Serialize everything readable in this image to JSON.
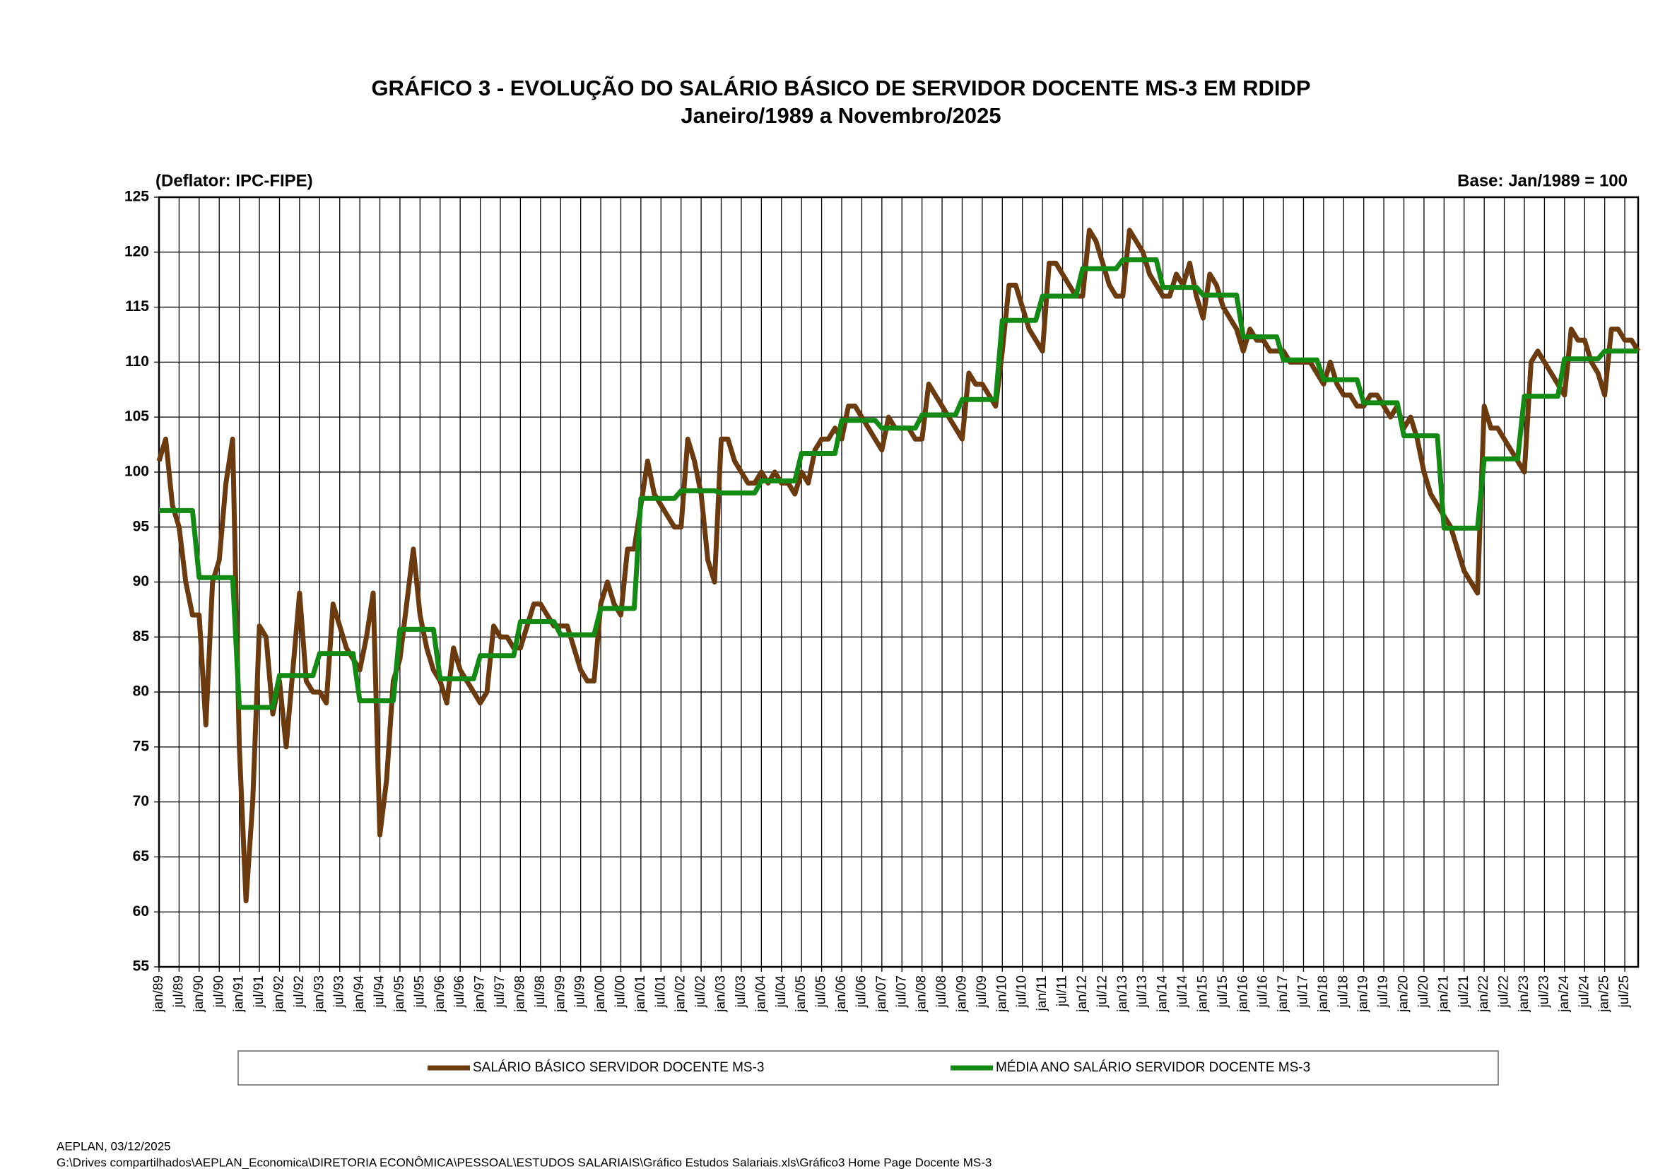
{
  "chart_data": {
    "type": "line",
    "title": "GRÁFICO 3 - EVOLUÇÃO DO SALÁRIO BÁSICO DE SERVIDOR DOCENTE MS-3 EM RDIDP",
    "subtitle": "Janeiro/1989 a Novembro/2025",
    "annotations": [
      "(Deflator: IPC-FIPE)",
      "Base: Jan/1989 = 100"
    ],
    "footer": [
      "AEPLAN, 03/12/2025",
      "G:\\Drives compartilhados\\AEPLAN_Economica\\DIRETORIA ECONÔMICA\\PESSOAL\\ESTUDOS SALARIAIS\\Gráfico Estudos Salariais.xls\\Gráfico3 Home Page Docente MS-3"
    ],
    "categories": [
      "jan/89",
      null,
      null,
      "jul/89",
      null,
      null,
      "jan/90",
      null,
      null,
      "jul/90",
      null,
      null,
      "jan/91",
      null,
      null,
      "jul/91",
      null,
      null,
      "jan/92",
      null,
      null,
      "jul/92",
      null,
      null,
      "jan/93",
      null,
      null,
      "jul/93",
      null,
      null,
      "jan/94",
      null,
      null,
      "jul/94",
      null,
      null,
      "jan/95",
      null,
      null,
      "jul/95",
      null,
      null,
      "jan/96",
      null,
      null,
      "jul/96",
      null,
      null,
      "jan/97",
      null,
      null,
      "jul/97",
      null,
      null,
      "jan/98",
      null,
      null,
      "jul/98",
      null,
      null,
      "jan/99",
      null,
      null,
      "jul/99",
      null,
      null,
      "jan/00",
      null,
      null,
      "jul/00",
      null,
      null,
      "jan/01",
      null,
      null,
      "jul/01",
      null,
      null,
      "jan/02",
      null,
      null,
      "jul/02",
      null,
      null,
      "jan/03",
      null,
      null,
      "jul/03",
      null,
      null,
      "jan/04",
      null,
      null,
      "jul/04",
      null,
      null,
      "jan/05",
      null,
      null,
      "jul/05",
      null,
      null,
      "jan/06",
      null,
      null,
      "jul/06",
      null,
      null,
      "jan/07",
      null,
      null,
      "jul/07",
      null,
      null,
      "jan/08",
      null,
      null,
      "jul/08",
      null,
      null,
      "jan/09",
      null,
      null,
      "jul/09",
      null,
      null,
      "jan/10",
      null,
      null,
      "jul/10",
      null,
      null,
      "jan/11",
      null,
      null,
      "jul/11",
      null,
      null,
      "jan/12",
      null,
      null,
      "jul/12",
      null,
      null,
      "jan/13",
      null,
      null,
      "jul/13",
      null,
      null,
      "jan/14",
      null,
      null,
      "jul/14",
      null,
      null,
      "jan/15",
      null,
      null,
      "jul/15",
      null,
      null,
      "jan/16",
      null,
      null,
      "jul/16",
      null,
      null,
      "jan/17",
      null,
      null,
      "jul/17",
      null,
      null,
      "jan/18",
      null,
      null,
      "jul/18",
      null,
      null,
      "jan/19",
      null,
      null,
      "jul/19",
      null,
      null,
      "jan/20",
      null,
      null,
      "jul/20",
      null,
      null,
      "jan/21",
      null,
      null,
      "jul/21",
      null,
      null,
      "jan/22",
      null,
      null,
      "jul/22",
      null,
      null,
      "jan/23",
      null,
      null,
      "jul/23",
      null,
      null,
      "jan/24",
      null,
      null,
      "jul/24",
      null,
      null,
      "jan/25",
      null,
      null,
      "jul/25",
      null,
      null
    ],
    "series": [
      {
        "name": "SALÁRIO BÁSICO SERVIDOR DOCENTE MS-3",
        "color": "#6b3a0f",
        "values": [
          101,
          103,
          97,
          95,
          90,
          87,
          87,
          77,
          90,
          92,
          99,
          103,
          75,
          61,
          70,
          86,
          85,
          78,
          81,
          75,
          82,
          89,
          81,
          80,
          80,
          79,
          88,
          86,
          84,
          83,
          82,
          85,
          89,
          67,
          72,
          81,
          83,
          88,
          93,
          87,
          84,
          82,
          81,
          79,
          84,
          82,
          81,
          80,
          79,
          80,
          86,
          85,
          85,
          84,
          84,
          86,
          88,
          88,
          87,
          86,
          86,
          86,
          84,
          82,
          81,
          81,
          88,
          90,
          88,
          87,
          93,
          93,
          97,
          101,
          98,
          97,
          96,
          95,
          95,
          103,
          101,
          98,
          92,
          90,
          103,
          103,
          101,
          100,
          99,
          99,
          100,
          99,
          100,
          99,
          99,
          98,
          100,
          99,
          102,
          103,
          103,
          104,
          103,
          106,
          106,
          105,
          104,
          103,
          102,
          105,
          104,
          104,
          104,
          103,
          103,
          108,
          107,
          106,
          105,
          104,
          103,
          109,
          108,
          108,
          107,
          106,
          111,
          117,
          117,
          115,
          113,
          112,
          111,
          119,
          119,
          118,
          117,
          116,
          116,
          122,
          121,
          119,
          117,
          116,
          116,
          122,
          121,
          120,
          118,
          117,
          116,
          116,
          118,
          117,
          119,
          116,
          114,
          118,
          117,
          115,
          114,
          113,
          111,
          113,
          112,
          112,
          111,
          111,
          111,
          110,
          110,
          110,
          110,
          109,
          108,
          110,
          108,
          107,
          107,
          106,
          106,
          107,
          107,
          106,
          105,
          106,
          104,
          105,
          103,
          100,
          98,
          97,
          96,
          95,
          93,
          91,
          90,
          89,
          106,
          104,
          104,
          103,
          102,
          101,
          100,
          110,
          111,
          110,
          109,
          108,
          107,
          113,
          112,
          112,
          110,
          109,
          107,
          113,
          113,
          112,
          112,
          111
        ]
      },
      {
        "name": "MÉDIA ANO SALÁRIO SERVIDOR DOCENTE MS-3",
        "color": "#138a13",
        "values": [
          96.5,
          96.5,
          96.5,
          96.5,
          96.5,
          96.5,
          90.4,
          90.4,
          90.4,
          90.4,
          90.4,
          90.4,
          78.6,
          78.6,
          78.6,
          78.6,
          78.6,
          78.6,
          81.5,
          81.5,
          81.5,
          81.5,
          81.5,
          81.5,
          83.5,
          83.5,
          83.5,
          83.5,
          83.5,
          83.5,
          79.2,
          79.2,
          79.2,
          79.2,
          79.2,
          79.2,
          85.7,
          85.7,
          85.7,
          85.7,
          85.7,
          85.7,
          81.2,
          81.2,
          81.2,
          81.2,
          81.2,
          81.2,
          83.3,
          83.3,
          83.3,
          83.3,
          83.3,
          83.3,
          86.4,
          86.4,
          86.4,
          86.4,
          86.4,
          86.4,
          85.2,
          85.2,
          85.2,
          85.2,
          85.2,
          85.2,
          87.6,
          87.6,
          87.6,
          87.6,
          87.6,
          87.6,
          97.6,
          97.6,
          97.6,
          97.6,
          97.6,
          97.6,
          98.3,
          98.3,
          98.3,
          98.3,
          98.3,
          98.3,
          98.1,
          98.1,
          98.1,
          98.1,
          98.1,
          98.1,
          99.2,
          99.2,
          99.2,
          99.2,
          99.2,
          99.2,
          101.7,
          101.7,
          101.7,
          101.7,
          101.7,
          101.7,
          104.7,
          104.7,
          104.7,
          104.7,
          104.7,
          104.7,
          104,
          104,
          104,
          104,
          104,
          104,
          105.2,
          105.2,
          105.2,
          105.2,
          105.2,
          105.2,
          106.6,
          106.6,
          106.6,
          106.6,
          106.6,
          106.6,
          113.8,
          113.8,
          113.8,
          113.8,
          113.8,
          113.8,
          116,
          116,
          116,
          116,
          116,
          116,
          118.5,
          118.5,
          118.5,
          118.5,
          118.5,
          118.5,
          119.3,
          119.3,
          119.3,
          119.3,
          119.3,
          119.3,
          116.8,
          116.8,
          116.8,
          116.8,
          116.8,
          116.8,
          116.1,
          116.1,
          116.1,
          116.1,
          116.1,
          116.1,
          112.3,
          112.3,
          112.3,
          112.3,
          112.3,
          112.3,
          110.2,
          110.2,
          110.2,
          110.2,
          110.2,
          110.2,
          108.4,
          108.4,
          108.4,
          108.4,
          108.4,
          108.4,
          106.3,
          106.3,
          106.3,
          106.3,
          106.3,
          106.3,
          103.3,
          103.3,
          103.3,
          103.3,
          103.3,
          103.3,
          94.9,
          94.9,
          94.9,
          94.9,
          94.9,
          94.9,
          101.2,
          101.2,
          101.2,
          101.2,
          101.2,
          101.2,
          106.9,
          106.9,
          106.9,
          106.9,
          106.9,
          106.9,
          110.3,
          110.3,
          110.3,
          110.3,
          110.3,
          110.3,
          111,
          111,
          111,
          111,
          111,
          111
        ]
      }
    ],
    "ylim": [
      55,
      125
    ],
    "yticks": [
      55,
      60,
      65,
      70,
      75,
      80,
      85,
      90,
      95,
      100,
      105,
      110,
      115,
      120,
      125
    ],
    "grid": true,
    "legend": "bottom"
  }
}
